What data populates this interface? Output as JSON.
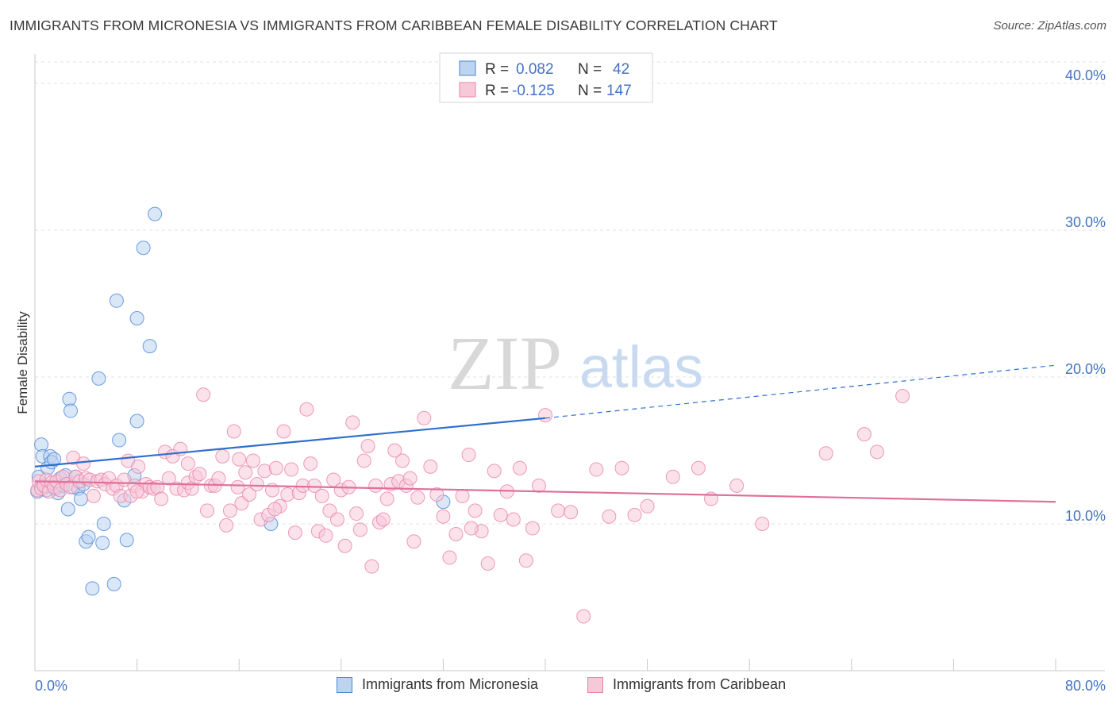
{
  "title": "IMMIGRANTS FROM MICRONESIA VS IMMIGRANTS FROM CARIBBEAN FEMALE DISABILITY CORRELATION CHART",
  "source": "Source: ZipAtlas.com",
  "watermark": {
    "zip": "ZIP",
    "atlas": "atlas"
  },
  "chart_data": {
    "type": "scatter",
    "xlabel": "",
    "ylabel": "Female Disability",
    "xlim": [
      0,
      80
    ],
    "ylim": [
      0,
      42
    ],
    "x_tick_labels": [
      "0.0%",
      "80.0%"
    ],
    "y_ticks": [
      10,
      20,
      30,
      40
    ],
    "y_tick_labels": [
      "10.0%",
      "20.0%",
      "30.0%",
      "40.0%"
    ],
    "grid": "horizontal-dashed",
    "legend_top": [
      {
        "r_label": "R =",
        "r_value": "0.082",
        "n_label": "N =",
        "n_value": "42",
        "color": "#4472c4"
      },
      {
        "r_label": "R =",
        "r_value": "-0.125",
        "n_label": "N =",
        "n_value": "147",
        "color": "#e06f9a"
      }
    ],
    "series": [
      {
        "name": "Immigrants from Micronesia",
        "color": "#4a86d8",
        "fill": "#bcd4f0",
        "trend": {
          "x": [
            0,
            40
          ],
          "y": [
            13.9,
            17.2
          ],
          "dashed_to": [
            80,
            20.8
          ]
        },
        "points": [
          [
            0.2,
            12.2
          ],
          [
            0.3,
            13.2
          ],
          [
            0.5,
            15.4
          ],
          [
            0.6,
            14.6
          ],
          [
            0.8,
            12.5
          ],
          [
            1.0,
            13.8
          ],
          [
            1.2,
            14.6
          ],
          [
            1.3,
            14.2
          ],
          [
            1.5,
            14.4
          ],
          [
            1.6,
            12.4
          ],
          [
            1.8,
            12.1
          ],
          [
            2.0,
            13.1
          ],
          [
            2.2,
            12.6
          ],
          [
            2.4,
            13.3
          ],
          [
            2.6,
            11.0
          ],
          [
            2.7,
            18.5
          ],
          [
            2.8,
            17.7
          ],
          [
            3.0,
            12.5
          ],
          [
            3.2,
            13.2
          ],
          [
            3.4,
            12.4
          ],
          [
            3.6,
            11.7
          ],
          [
            3.8,
            12.7
          ],
          [
            4.0,
            8.8
          ],
          [
            4.2,
            9.1
          ],
          [
            4.5,
            5.6
          ],
          [
            5.0,
            19.9
          ],
          [
            5.3,
            8.7
          ],
          [
            5.4,
            10.0
          ],
          [
            6.2,
            5.9
          ],
          [
            6.4,
            25.2
          ],
          [
            6.6,
            15.7
          ],
          [
            7.0,
            11.6
          ],
          [
            7.2,
            8.9
          ],
          [
            7.8,
            13.3
          ],
          [
            8.0,
            17.0
          ],
          [
            8.0,
            24.0
          ],
          [
            8.5,
            28.8
          ],
          [
            9.0,
            22.1
          ],
          [
            9.4,
            31.1
          ],
          [
            18.5,
            10.0
          ],
          [
            32.0,
            11.5
          ],
          [
            0.9,
            12.3
          ]
        ]
      },
      {
        "name": "Immigrants from Caribbean",
        "color": "#e883a7",
        "fill": "#f7c8d8",
        "trend": {
          "x": [
            0,
            80
          ],
          "y": [
            12.9,
            11.5
          ]
        },
        "points": [
          [
            0.2,
            12.3
          ],
          [
            0.3,
            12.9
          ],
          [
            0.5,
            12.4
          ],
          [
            0.7,
            12.6
          ],
          [
            0.9,
            13.0
          ],
          [
            1.1,
            12.2
          ],
          [
            1.3,
            12.8
          ],
          [
            1.5,
            12.5
          ],
          [
            1.7,
            12.9
          ],
          [
            2.0,
            12.3
          ],
          [
            2.2,
            13.2
          ],
          [
            2.5,
            12.7
          ],
          [
            2.8,
            12.5
          ],
          [
            3.0,
            14.5
          ],
          [
            3.2,
            13.2
          ],
          [
            3.5,
            12.9
          ],
          [
            3.8,
            14.1
          ],
          [
            4.0,
            13.1
          ],
          [
            4.3,
            13.0
          ],
          [
            4.6,
            11.9
          ],
          [
            4.9,
            12.9
          ],
          [
            5.2,
            13.0
          ],
          [
            5.5,
            12.7
          ],
          [
            5.8,
            13.1
          ],
          [
            6.1,
            12.4
          ],
          [
            6.4,
            12.6
          ],
          [
            6.7,
            11.9
          ],
          [
            7.0,
            13.0
          ],
          [
            7.3,
            14.3
          ],
          [
            7.5,
            11.9
          ],
          [
            7.8,
            12.6
          ],
          [
            8.1,
            13.9
          ],
          [
            8.4,
            12.2
          ],
          [
            8.7,
            12.7
          ],
          [
            9.0,
            12.5
          ],
          [
            9.3,
            12.4
          ],
          [
            9.6,
            12.5
          ],
          [
            9.9,
            11.7
          ],
          [
            10.2,
            14.9
          ],
          [
            10.5,
            13.1
          ],
          [
            10.8,
            14.6
          ],
          [
            11.1,
            12.4
          ],
          [
            11.4,
            15.1
          ],
          [
            11.7,
            12.3
          ],
          [
            12.0,
            12.8
          ],
          [
            12.3,
            12.4
          ],
          [
            12.6,
            13.2
          ],
          [
            12.9,
            13.4
          ],
          [
            13.2,
            18.8
          ],
          [
            13.5,
            10.9
          ],
          [
            13.8,
            12.6
          ],
          [
            14.1,
            12.6
          ],
          [
            14.4,
            13.1
          ],
          [
            14.7,
            14.6
          ],
          [
            15.0,
            9.9
          ],
          [
            15.3,
            10.9
          ],
          [
            15.6,
            16.3
          ],
          [
            15.9,
            12.5
          ],
          [
            16.2,
            11.4
          ],
          [
            16.5,
            13.5
          ],
          [
            16.8,
            12.0
          ],
          [
            17.1,
            14.3
          ],
          [
            17.4,
            12.7
          ],
          [
            17.7,
            10.3
          ],
          [
            18.0,
            13.6
          ],
          [
            18.3,
            10.6
          ],
          [
            18.6,
            12.3
          ],
          [
            18.9,
            13.8
          ],
          [
            19.2,
            11.2
          ],
          [
            19.5,
            16.3
          ],
          [
            19.8,
            12.0
          ],
          [
            20.1,
            13.7
          ],
          [
            20.4,
            9.4
          ],
          [
            20.7,
            12.1
          ],
          [
            21.0,
            12.6
          ],
          [
            21.3,
            17.8
          ],
          [
            21.6,
            14.1
          ],
          [
            21.9,
            12.6
          ],
          [
            22.2,
            9.5
          ],
          [
            22.5,
            11.9
          ],
          [
            22.8,
            9.2
          ],
          [
            23.1,
            10.9
          ],
          [
            23.4,
            13.0
          ],
          [
            23.7,
            10.3
          ],
          [
            24.0,
            12.3
          ],
          [
            24.3,
            8.5
          ],
          [
            24.6,
            12.5
          ],
          [
            24.9,
            16.9
          ],
          [
            25.2,
            10.7
          ],
          [
            25.5,
            9.6
          ],
          [
            25.8,
            14.3
          ],
          [
            26.1,
            15.3
          ],
          [
            26.4,
            7.1
          ],
          [
            26.7,
            12.6
          ],
          [
            27.0,
            10.1
          ],
          [
            27.3,
            10.3
          ],
          [
            27.6,
            11.7
          ],
          [
            27.9,
            12.7
          ],
          [
            28.2,
            15.0
          ],
          [
            28.5,
            12.9
          ],
          [
            28.8,
            14.3
          ],
          [
            29.1,
            12.6
          ],
          [
            29.4,
            13.1
          ],
          [
            29.7,
            8.8
          ],
          [
            30.0,
            11.8
          ],
          [
            30.5,
            17.2
          ],
          [
            31.0,
            13.9
          ],
          [
            31.5,
            12.0
          ],
          [
            32.0,
            10.5
          ],
          [
            32.5,
            7.7
          ],
          [
            33.0,
            9.3
          ],
          [
            33.5,
            11.9
          ],
          [
            34.0,
            14.7
          ],
          [
            34.5,
            10.9
          ],
          [
            35.0,
            9.5
          ],
          [
            35.5,
            7.3
          ],
          [
            36.0,
            13.6
          ],
          [
            36.5,
            10.6
          ],
          [
            37.0,
            12.2
          ],
          [
            37.5,
            10.3
          ],
          [
            38.0,
            13.8
          ],
          [
            38.5,
            7.5
          ],
          [
            39.0,
            9.7
          ],
          [
            39.5,
            12.6
          ],
          [
            40.0,
            17.4
          ],
          [
            41.0,
            10.9
          ],
          [
            42.0,
            10.8
          ],
          [
            43.0,
            3.7
          ],
          [
            44.0,
            13.7
          ],
          [
            45.0,
            10.5
          ],
          [
            46.0,
            13.8
          ],
          [
            47.0,
            10.6
          ],
          [
            48.0,
            11.2
          ],
          [
            50.0,
            13.2
          ],
          [
            52.0,
            13.8
          ],
          [
            53.0,
            11.7
          ],
          [
            55.0,
            12.6
          ],
          [
            57.0,
            10.0
          ],
          [
            62.0,
            14.8
          ],
          [
            65.0,
            16.1
          ],
          [
            66.0,
            14.9
          ],
          [
            68.0,
            18.7
          ],
          [
            34.2,
            9.7
          ],
          [
            12.0,
            14.1
          ],
          [
            8.0,
            12.2
          ],
          [
            16.0,
            14.4
          ],
          [
            18.8,
            11.0
          ]
        ]
      }
    ]
  }
}
